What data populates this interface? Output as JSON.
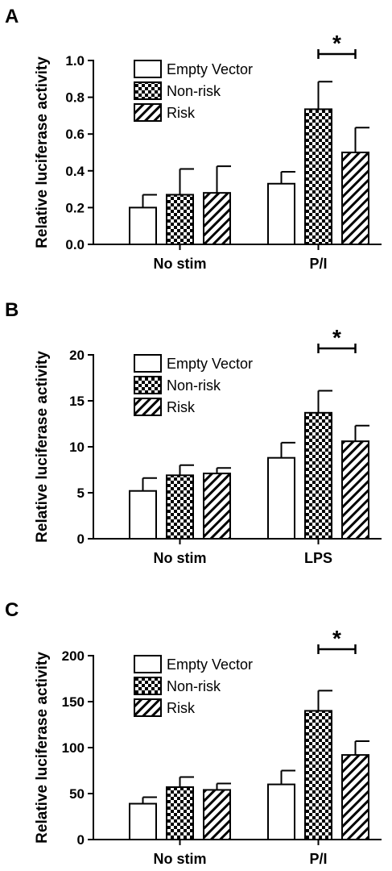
{
  "chart_data": [
    {
      "type": "bar",
      "panel": "A",
      "ylabel": "Relative luciferase activity",
      "ylim": [
        0,
        1.0
      ],
      "yticks": [
        "0.0",
        "0.2",
        "0.4",
        "0.6",
        "0.8",
        "1.0"
      ],
      "categories": [
        "No stim",
        "P/I"
      ],
      "series": [
        {
          "name": "Empty Vector",
          "pattern": "empty",
          "values": [
            0.2,
            0.33
          ],
          "errors": [
            0.07,
            0.065
          ]
        },
        {
          "name": "Non-risk",
          "pattern": "checker",
          "values": [
            0.27,
            0.735
          ],
          "errors": [
            0.14,
            0.15
          ]
        },
        {
          "name": "Risk",
          "pattern": "hatch",
          "values": [
            0.28,
            0.5
          ],
          "errors": [
            0.145,
            0.135
          ]
        }
      ],
      "legend_position": "top-left",
      "significance": {
        "label": "*",
        "category": 1,
        "between": [
          "Non-risk",
          "Risk"
        ]
      }
    },
    {
      "type": "bar",
      "panel": "B",
      "ylabel": "Relative luciferase activity",
      "ylim": [
        0,
        20
      ],
      "yticks": [
        "0",
        "5",
        "10",
        "15",
        "20"
      ],
      "categories": [
        "No stim",
        "LPS"
      ],
      "series": [
        {
          "name": "Empty Vector",
          "pattern": "empty",
          "values": [
            5.2,
            8.8
          ],
          "errors": [
            1.4,
            1.65
          ]
        },
        {
          "name": "Non-risk",
          "pattern": "checker",
          "values": [
            6.9,
            13.7
          ],
          "errors": [
            1.1,
            2.4
          ]
        },
        {
          "name": "Risk",
          "pattern": "hatch",
          "values": [
            7.1,
            10.6
          ],
          "errors": [
            0.6,
            1.7
          ]
        }
      ],
      "legend_position": "top-left",
      "significance": {
        "label": "*",
        "category": 1,
        "between": [
          "Non-risk",
          "Risk"
        ]
      }
    },
    {
      "type": "bar",
      "panel": "C",
      "ylabel": "Relative luciferase activity",
      "ylim": [
        0,
        200
      ],
      "yticks": [
        "0",
        "50",
        "100",
        "150",
        "200"
      ],
      "categories": [
        "No stim",
        "P/I"
      ],
      "series": [
        {
          "name": "Empty Vector",
          "pattern": "empty",
          "values": [
            39,
            60
          ],
          "errors": [
            7,
            15
          ]
        },
        {
          "name": "Non-risk",
          "pattern": "checker",
          "values": [
            57,
            140
          ],
          "errors": [
            11,
            22
          ]
        },
        {
          "name": "Risk",
          "pattern": "hatch",
          "values": [
            54,
            92
          ],
          "errors": [
            7,
            15
          ]
        }
      ],
      "legend_position": "top-left",
      "significance": {
        "label": "*",
        "category": 1,
        "between": [
          "Non-risk",
          "Risk"
        ]
      }
    }
  ]
}
